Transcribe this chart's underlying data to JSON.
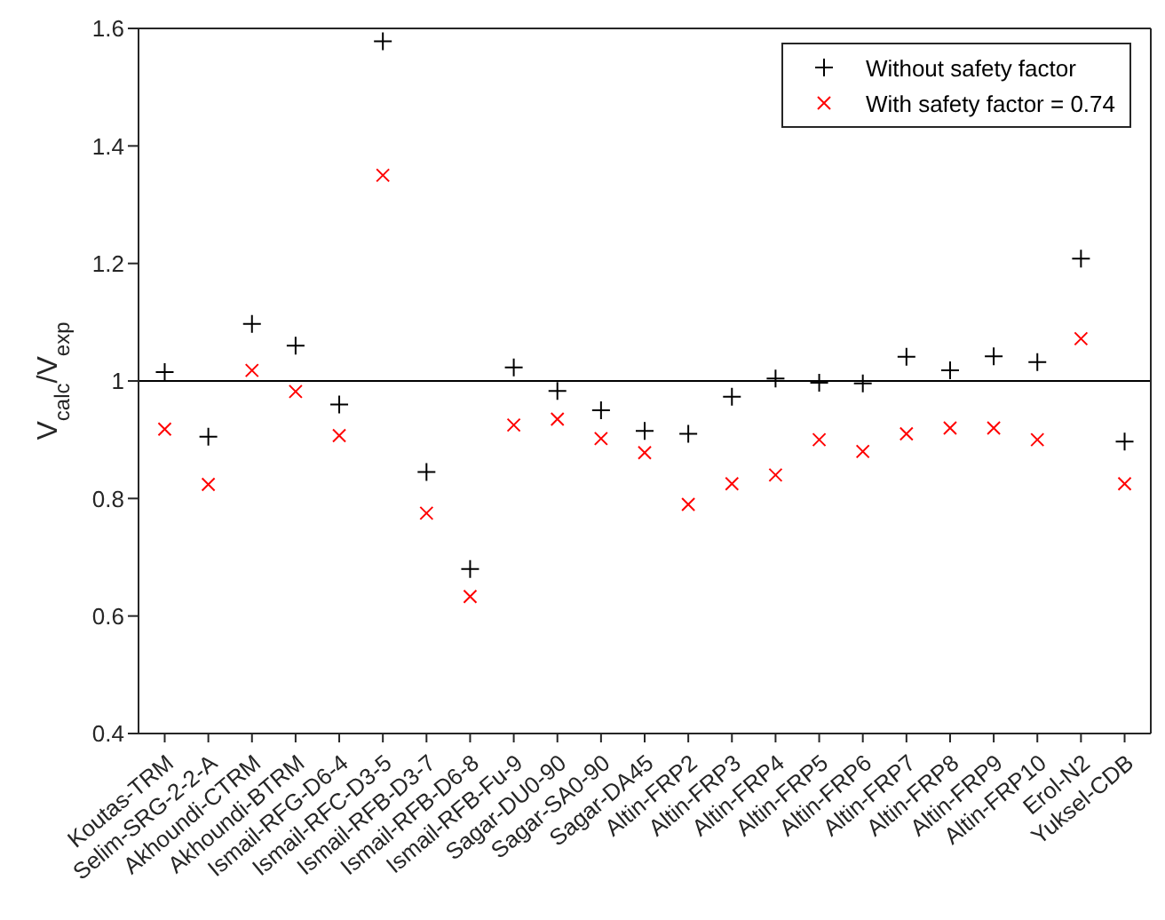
{
  "chart_data": {
    "type": "scatter",
    "ylabel": "V$_{calc}$/V$_{exp}$",
    "categories": [
      "Koutas-TRM",
      "Selim-SRG-2-2-A",
      "Akhoundi-CTRM",
      "Akhoundi-BTRM",
      "Ismail-RFG-D6-4",
      "Ismail-RFC-D3-5",
      "Ismail-RFB-D3-7",
      "Ismail-RFB-D6-8",
      "Ismail-RFB-Fu-9",
      "Sagar-DU0-90",
      "Sagar-SA0-90",
      "Sagar-DA45",
      "Altin-FRP2",
      "Altin-FRP3",
      "Altin-FRP4",
      "Altin-FRP5",
      "Altin-FRP6",
      "Altin-FRP7",
      "Altin-FRP8",
      "Altin-FRP9",
      "Altin-FRP10",
      "Erol-N2",
      "Yuksel-CDB"
    ],
    "series": [
      {
        "name": "Without safety factor",
        "color": "#000000",
        "marker": "plus",
        "values": [
          1.015,
          0.905,
          1.097,
          1.06,
          0.96,
          1.578,
          0.845,
          0.68,
          1.023,
          0.983,
          0.95,
          0.915,
          0.91,
          0.973,
          1.004,
          0.997,
          0.996,
          1.041,
          1.018,
          1.042,
          1.032,
          1.208,
          0.897
        ]
      },
      {
        "name": "With safety factor = 0.74",
        "color": "#ff0000",
        "marker": "cross",
        "values": [
          0.918,
          0.824,
          1.018,
          0.982,
          0.907,
          1.35,
          0.775,
          0.633,
          0.925,
          0.935,
          0.902,
          0.878,
          0.79,
          0.825,
          0.84,
          0.9,
          0.88,
          0.91,
          0.92,
          0.92,
          0.9,
          1.072,
          0.825
        ]
      }
    ],
    "ylim": [
      0.4,
      1.6
    ],
    "yticks": [
      0.4,
      0.6,
      0.8,
      1,
      1.2,
      1.4,
      1.6
    ],
    "ref_lines": [
      {
        "axis": "y",
        "value": 1,
        "color": "#000000"
      }
    ],
    "legend": "top right"
  }
}
